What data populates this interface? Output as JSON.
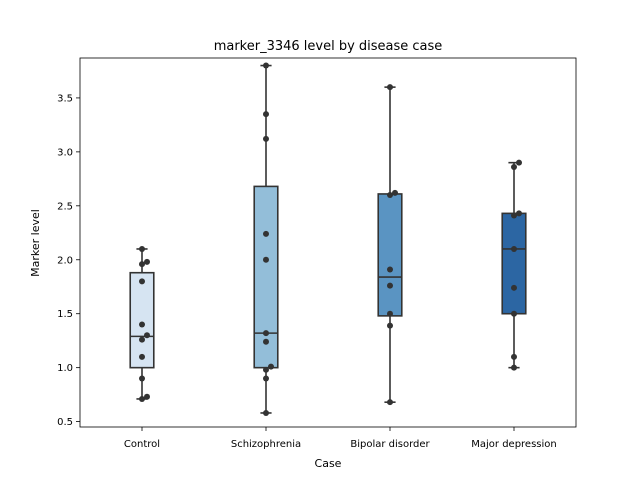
{
  "chart_data": {
    "type": "box",
    "title": "marker_3346 level by disease case",
    "xlabel": "Case",
    "ylabel": "Marker level",
    "ylim": [
      0.45,
      3.87
    ],
    "yticks": [
      0.5,
      1.0,
      1.5,
      2.0,
      2.5,
      3.0,
      3.5
    ],
    "ytick_labels": [
      "0.5",
      "1.0",
      "1.5",
      "2.0",
      "2.5",
      "3.0",
      "3.5"
    ],
    "grid": false,
    "categories": [
      "Control",
      "Schizophrenia",
      "Bipolar disorder",
      "Major depression"
    ],
    "colors": [
      "#d6e4f2",
      "#93bed9",
      "#5a94c2",
      "#2c66a3"
    ],
    "edge_color": "#333333",
    "point_color": "#333333",
    "boxes": [
      {
        "q1": 1.0,
        "median": 1.29,
        "q3": 1.88,
        "whisker_low": 0.71,
        "whisker_high": 2.1
      },
      {
        "q1": 1.0,
        "median": 1.32,
        "q3": 2.68,
        "whisker_low": 0.58,
        "whisker_high": 3.8
      },
      {
        "q1": 1.48,
        "median": 1.84,
        "q3": 2.61,
        "whisker_low": 0.68,
        "whisker_high": 3.6
      },
      {
        "q1": 1.5,
        "median": 2.1,
        "q3": 2.43,
        "whisker_low": 1.0,
        "whisker_high": 2.9
      }
    ],
    "points": [
      [
        2.1,
        1.98,
        1.96,
        1.8,
        1.4,
        1.3,
        1.26,
        1.1,
        0.9,
        0.73,
        0.71
      ],
      [
        3.8,
        3.35,
        3.12,
        2.24,
        2.0,
        1.32,
        1.24,
        1.01,
        0.98,
        0.9,
        0.58
      ],
      [
        3.6,
        2.62,
        2.6,
        1.91,
        1.76,
        1.5,
        1.39,
        0.68
      ],
      [
        2.9,
        2.86,
        2.43,
        2.41,
        2.1,
        1.74,
        1.5,
        1.1,
        1.0
      ]
    ]
  }
}
